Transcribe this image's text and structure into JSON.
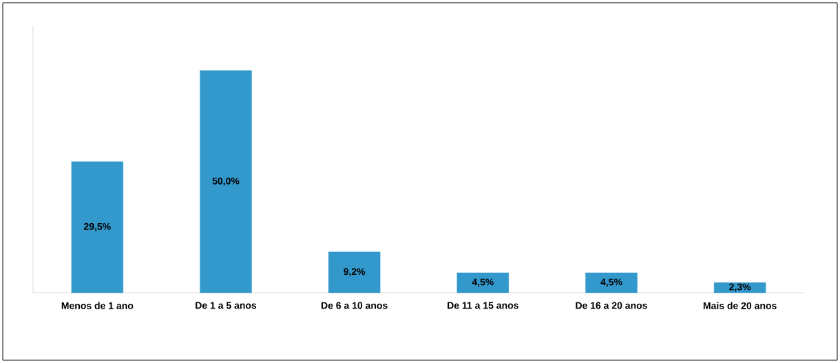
{
  "chart_data": {
    "type": "bar",
    "categories": [
      "Menos de 1 ano",
      "De 1 a 5 anos",
      "De 6 a 10 anos",
      "De 11 a 15 anos",
      "De 16 a 20 anos",
      "Mais de 20 anos"
    ],
    "values": [
      29.5,
      50.0,
      9.2,
      4.5,
      4.5,
      2.3
    ],
    "value_labels": [
      "29,5%",
      "50,0%",
      "9,2%",
      "4,5%",
      "4,5%",
      "2,3%"
    ],
    "color": "#3399cc",
    "ylim": [
      0,
      60
    ]
  }
}
